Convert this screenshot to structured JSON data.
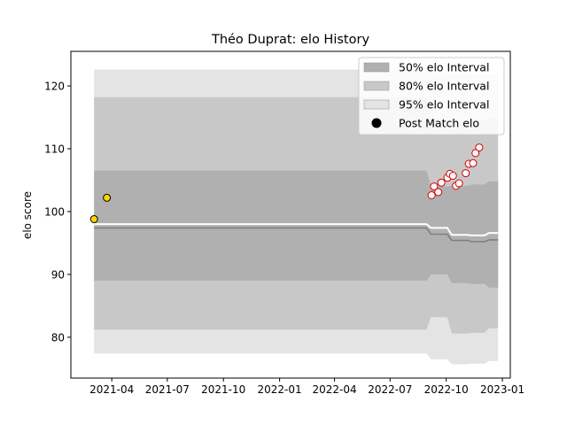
{
  "chart_data": {
    "type": "area",
    "title": "Théo Duprat: elo History",
    "xlabel": "",
    "ylabel": "elo score",
    "xlim": [
      "2021-01-24",
      "2023-01-14"
    ],
    "ylim": [
      73.5,
      125.5
    ],
    "grid": false,
    "legend_position": "top-right",
    "x_ticks": [
      "2021-04",
      "2021-07",
      "2021-10",
      "2022-01",
      "2022-04",
      "2022-07",
      "2022-10",
      "2023-01"
    ],
    "x_tick_dates": [
      "2021-04-01",
      "2021-07-01",
      "2021-10-01",
      "2022-01-01",
      "2022-04-01",
      "2022-07-01",
      "2022-10-01",
      "2023-01-01"
    ],
    "y_ticks": [
      80,
      90,
      100,
      110,
      120
    ],
    "colors": {
      "band_50": "#b0b0b0",
      "band_80": "#c8c8c8",
      "band_95": "#e4e4e4",
      "mean_line": "#808080",
      "median_line": "#ffffff",
      "point_past_fill": "#ffd400",
      "point_past_edge": "#000000",
      "point_new_fill": "#ffffff",
      "point_new_edge": "#d40000"
    },
    "legend": [
      {
        "label": "50% elo Interval",
        "kind": "band_50"
      },
      {
        "label": "80% elo Interval",
        "kind": "band_80"
      },
      {
        "label": "95% elo Interval",
        "kind": "band_95"
      },
      {
        "label": "Post Match elo",
        "kind": "point"
      }
    ],
    "x": [
      "2021-03-03",
      "2022-09-06",
      "2022-10-10",
      "2022-11-12",
      "2022-12-10",
      "2022-12-25"
    ],
    "bands": {
      "band_95": {
        "upper": [
          122.6,
          122.1,
          122.0,
          121.8,
          121.8,
          121.8
        ],
        "lower": [
          77.4,
          76.5,
          75.7,
          75.8,
          76.2,
          76.2
        ]
      },
      "band_80": {
        "upper": [
          118.2,
          114.2,
          114.4,
          114.6,
          114.8,
          114.8
        ],
        "lower": [
          81.2,
          83.2,
          80.6,
          80.7,
          81.4,
          81.4
        ]
      },
      "band_50": {
        "upper": [
          106.5,
          104.0,
          104.1,
          104.3,
          104.8,
          104.8
        ],
        "lower": [
          89.0,
          90.0,
          88.6,
          88.5,
          87.9,
          87.9
        ]
      }
    },
    "series": [
      {
        "kind": "mean_line",
        "values": [
          97.4,
          96.4,
          95.4,
          95.2,
          95.5,
          95.5
        ]
      },
      {
        "kind": "median_line",
        "values": [
          98.0,
          97.4,
          96.3,
          96.2,
          96.6,
          96.6
        ]
      }
    ],
    "points_past": [
      {
        "x": "2021-03-03",
        "y": 98.8
      },
      {
        "x": "2021-03-24",
        "y": 102.2
      }
    ],
    "points_new": [
      {
        "x": "2022-09-07",
        "y": 102.6
      },
      {
        "x": "2022-09-11",
        "y": 104.0
      },
      {
        "x": "2022-09-18",
        "y": 103.1
      },
      {
        "x": "2022-09-23",
        "y": 104.6
      },
      {
        "x": "2022-10-03",
        "y": 105.4
      },
      {
        "x": "2022-10-07",
        "y": 106.0
      },
      {
        "x": "2022-10-12",
        "y": 105.7
      },
      {
        "x": "2022-10-17",
        "y": 104.1
      },
      {
        "x": "2022-10-22",
        "y": 104.5
      },
      {
        "x": "2022-11-02",
        "y": 106.1
      },
      {
        "x": "2022-11-07",
        "y": 107.6
      },
      {
        "x": "2022-11-14",
        "y": 107.7
      },
      {
        "x": "2022-11-18",
        "y": 109.3
      },
      {
        "x": "2022-11-24",
        "y": 110.2
      }
    ]
  }
}
